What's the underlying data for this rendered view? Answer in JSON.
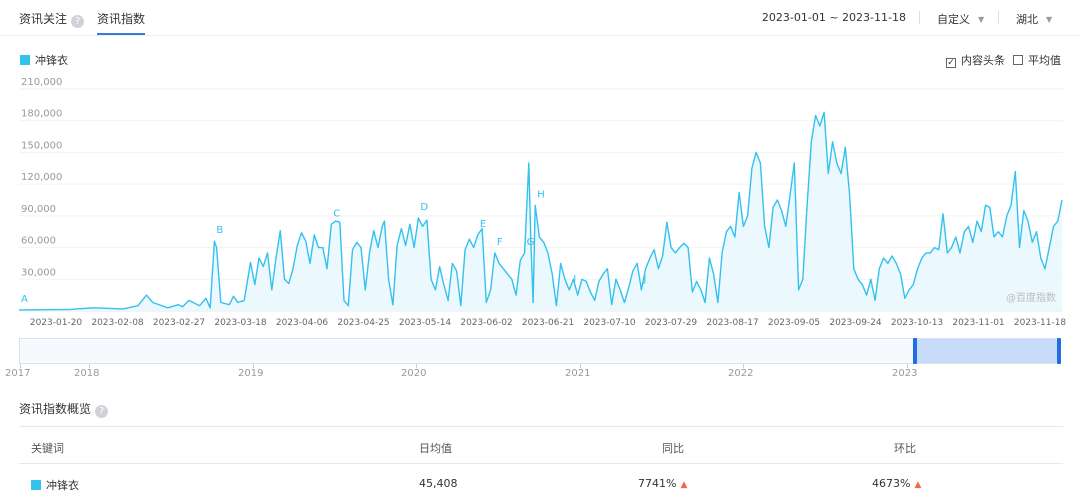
{
  "tabs": {
    "follow": "资讯关注",
    "index": "资讯指数",
    "help_glyph": "?"
  },
  "toolbar": {
    "date_range": "2023-01-01 ~ 2023-11-18",
    "custom": "自定义",
    "region": "湖北"
  },
  "legend": {
    "series_name": "冲锋衣",
    "color": "#33c1ef"
  },
  "options": {
    "content_headline": "内容头条",
    "content_headline_checked": true,
    "average": "平均值",
    "average_checked": false
  },
  "watermark": "@百度指数",
  "overview": {
    "title": "资讯指数概览",
    "headers": [
      "关键词",
      "日均值",
      "同比",
      "环比"
    ],
    "row": {
      "keyword": "冲锋衣",
      "daily_avg": "45,408",
      "yoy": "7741%",
      "mom": "4673%"
    }
  },
  "brush": {
    "years": [
      "2017",
      "2018",
      "2019",
      "2020",
      "2021",
      "2022",
      "2023"
    ]
  },
  "chart_data": {
    "type": "area",
    "series": [
      {
        "name": "冲锋衣",
        "color": "#33c1ef"
      }
    ],
    "ylim": [
      0,
      210000
    ],
    "yticks": [
      "210,000",
      "180,000",
      "150,000",
      "120,000",
      "90,000",
      "60,000",
      "30,000"
    ],
    "xticks": [
      "2023-01-20",
      "2023-02-08",
      "2023-02-27",
      "2023-03-18",
      "2023-04-06",
      "2023-04-25",
      "2023-05-14",
      "2023-06-02",
      "2023-06-21",
      "2023-07-10",
      "2023-07-29",
      "2023-08-17",
      "2023-09-05",
      "2023-09-24",
      "2023-10-13",
      "2023-11-01",
      "2023-11-18"
    ],
    "points": [
      [
        0,
        1000
      ],
      [
        24,
        1500
      ],
      [
        35,
        3000
      ],
      [
        49,
        2000
      ],
      [
        56,
        5000
      ],
      [
        60,
        15000
      ],
      [
        63,
        8000
      ],
      [
        70,
        3000
      ],
      [
        75,
        6000
      ],
      [
        77,
        4000
      ],
      [
        80,
        10000
      ],
      [
        85,
        5000
      ],
      [
        88,
        12000
      ],
      [
        90,
        3000
      ],
      [
        92,
        66000
      ],
      [
        93,
        60000
      ],
      [
        95,
        8000
      ],
      [
        99,
        6000
      ],
      [
        101,
        14000
      ],
      [
        103,
        8000
      ],
      [
        106,
        10000
      ],
      [
        109,
        46000
      ],
      [
        111,
        25000
      ],
      [
        113,
        50000
      ],
      [
        115,
        42000
      ],
      [
        117,
        55000
      ],
      [
        119,
        20000
      ],
      [
        121,
        50000
      ],
      [
        123,
        76000
      ],
      [
        125,
        30000
      ],
      [
        127,
        26000
      ],
      [
        129,
        40000
      ],
      [
        131,
        62000
      ],
      [
        133,
        74000
      ],
      [
        135,
        66000
      ],
      [
        137,
        45000
      ],
      [
        139,
        72000
      ],
      [
        141,
        60000
      ],
      [
        143,
        60000
      ],
      [
        145,
        40000
      ],
      [
        147,
        82000
      ],
      [
        149,
        85000
      ],
      [
        151,
        84000
      ],
      [
        153,
        10000
      ],
      [
        155,
        5000
      ],
      [
        157,
        58000
      ],
      [
        159,
        65000
      ],
      [
        161,
        60000
      ],
      [
        163,
        20000
      ],
      [
        165,
        55000
      ],
      [
        167,
        76000
      ],
      [
        169,
        60000
      ],
      [
        171,
        80000
      ],
      [
        172,
        85000
      ],
      [
        174,
        30000
      ],
      [
        176,
        6000
      ],
      [
        178,
        62000
      ],
      [
        180,
        78000
      ],
      [
        182,
        62000
      ],
      [
        184,
        82000
      ],
      [
        186,
        60000
      ],
      [
        188,
        88000
      ],
      [
        190,
        80000
      ],
      [
        192,
        86000
      ],
      [
        194,
        30000
      ],
      [
        196,
        20000
      ],
      [
        198,
        42000
      ],
      [
        200,
        25000
      ],
      [
        202,
        10000
      ],
      [
        204,
        45000
      ],
      [
        206,
        38000
      ],
      [
        208,
        5000
      ],
      [
        210,
        58000
      ],
      [
        212,
        68000
      ],
      [
        214,
        60000
      ],
      [
        216,
        72000
      ],
      [
        218,
        78000
      ],
      [
        220,
        8000
      ],
      [
        222,
        20000
      ],
      [
        224,
        55000
      ],
      [
        226,
        45000
      ],
      [
        228,
        40000
      ],
      [
        230,
        35000
      ],
      [
        232,
        30000
      ],
      [
        234,
        15000
      ],
      [
        236,
        48000
      ],
      [
        238,
        55000
      ],
      [
        240,
        140000
      ],
      [
        241,
        65000
      ],
      [
        242,
        8000
      ],
      [
        243,
        100000
      ],
      [
        245,
        70000
      ],
      [
        247,
        65000
      ],
      [
        249,
        55000
      ],
      [
        251,
        35000
      ],
      [
        253,
        5000
      ],
      [
        255,
        45000
      ],
      [
        257,
        30000
      ],
      [
        259,
        20000
      ],
      [
        261,
        30000
      ],
      [
        263,
        15000
      ],
      [
        265,
        30000
      ],
      [
        267,
        28000
      ],
      [
        269,
        18000
      ],
      [
        271,
        10000
      ],
      [
        273,
        28000
      ],
      [
        275,
        35000
      ],
      [
        277,
        40000
      ],
      [
        279,
        6000
      ],
      [
        281,
        30000
      ],
      [
        283,
        20000
      ],
      [
        285,
        8000
      ],
      [
        287,
        22000
      ],
      [
        289,
        38000
      ],
      [
        291,
        45000
      ],
      [
        293,
        20000
      ],
      [
        295,
        40000
      ],
      [
        297,
        50000
      ],
      [
        299,
        58000
      ],
      [
        301,
        40000
      ],
      [
        303,
        52000
      ],
      [
        305,
        84000
      ],
      [
        307,
        60000
      ],
      [
        309,
        55000
      ],
      [
        311,
        60000
      ],
      [
        313,
        64000
      ],
      [
        315,
        60000
      ],
      [
        317,
        18000
      ],
      [
        319,
        28000
      ],
      [
        321,
        20000
      ],
      [
        323,
        8000
      ],
      [
        325,
        50000
      ],
      [
        327,
        35000
      ],
      [
        329,
        8000
      ],
      [
        331,
        55000
      ],
      [
        333,
        75000
      ],
      [
        335,
        80000
      ],
      [
        337,
        70000
      ],
      [
        339,
        112000
      ],
      [
        341,
        80000
      ],
      [
        343,
        90000
      ],
      [
        345,
        135000
      ],
      [
        347,
        150000
      ],
      [
        349,
        140000
      ],
      [
        351,
        80000
      ],
      [
        353,
        60000
      ],
      [
        355,
        98000
      ],
      [
        357,
        105000
      ],
      [
        359,
        95000
      ],
      [
        361,
        80000
      ],
      [
        363,
        110000
      ],
      [
        365,
        140000
      ],
      [
        367,
        20000
      ],
      [
        369,
        30000
      ],
      [
        371,
        100000
      ],
      [
        373,
        160000
      ],
      [
        375,
        185000
      ],
      [
        377,
        175000
      ],
      [
        379,
        188000
      ],
      [
        381,
        130000
      ],
      [
        383,
        160000
      ],
      [
        385,
        140000
      ],
      [
        387,
        130000
      ],
      [
        389,
        155000
      ],
      [
        391,
        110000
      ],
      [
        393,
        40000
      ],
      [
        395,
        30000
      ],
      [
        397,
        25000
      ],
      [
        399,
        15000
      ],
      [
        401,
        30000
      ],
      [
        403,
        10000
      ],
      [
        405,
        40000
      ],
      [
        407,
        50000
      ],
      [
        409,
        45000
      ],
      [
        411,
        52000
      ],
      [
        413,
        45000
      ],
      [
        415,
        35000
      ],
      [
        417,
        12000
      ],
      [
        419,
        20000
      ],
      [
        421,
        25000
      ],
      [
        423,
        40000
      ],
      [
        425,
        50000
      ],
      [
        427,
        55000
      ],
      [
        429,
        55000
      ],
      [
        431,
        60000
      ],
      [
        433,
        58000
      ],
      [
        435,
        92000
      ],
      [
        437,
        55000
      ],
      [
        439,
        60000
      ],
      [
        441,
        70000
      ],
      [
        443,
        55000
      ],
      [
        445,
        75000
      ],
      [
        447,
        80000
      ],
      [
        449,
        65000
      ],
      [
        451,
        85000
      ],
      [
        453,
        75000
      ],
      [
        455,
        100000
      ],
      [
        457,
        98000
      ],
      [
        459,
        70000
      ],
      [
        461,
        75000
      ],
      [
        463,
        70000
      ],
      [
        465,
        90000
      ],
      [
        467,
        100000
      ],
      [
        469,
        132000
      ],
      [
        471,
        60000
      ],
      [
        473,
        95000
      ],
      [
        475,
        85000
      ],
      [
        477,
        65000
      ],
      [
        479,
        75000
      ],
      [
        481,
        50000
      ],
      [
        483,
        40000
      ],
      [
        485,
        60000
      ],
      [
        487,
        80000
      ],
      [
        489,
        85000
      ],
      [
        491,
        105000
      ]
    ],
    "x_days_total": 321,
    "annotations": [
      {
        "label": "A",
        "x": 0
      },
      {
        "label": "B",
        "x": 92
      },
      {
        "label": "C",
        "x": 147
      },
      {
        "label": "D",
        "x": 188
      },
      {
        "label": "E",
        "x": 216
      },
      {
        "label": "F",
        "x": 224
      },
      {
        "label": "G",
        "x": 238
      },
      {
        "label": "H",
        "x": 243
      },
      {
        "label": "I",
        "x": 260
      },
      {
        "label": "J",
        "x": 293
      }
    ]
  }
}
